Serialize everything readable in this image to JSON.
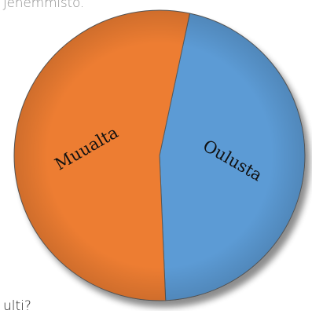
{
  "header": {
    "text": "jenemmisto."
  },
  "footer": {
    "text": "ulti?"
  },
  "chart_data": {
    "type": "pie",
    "title": "",
    "slices": [
      {
        "label": "Oulusta",
        "value": 46,
        "color": "#5b9bd5"
      },
      {
        "label": "Muualta",
        "value": 54,
        "color": "#ed7d31"
      }
    ],
    "start_angle_deg": 12,
    "direction": "clockwise",
    "legend": "none",
    "labels": "inside"
  }
}
